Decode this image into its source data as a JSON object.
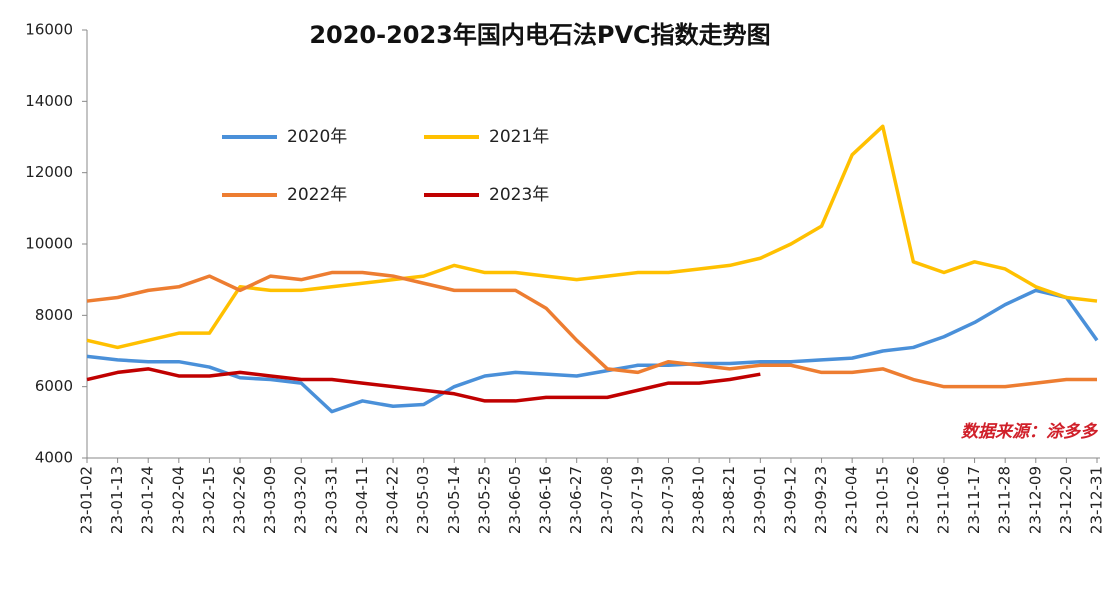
{
  "chart_data": {
    "type": "line",
    "title": "2020-2023年国内电石法PVC指数走势图",
    "note": "数据来源：涂多多",
    "categories": [
      "23-01-02",
      "23-01-13",
      "23-01-24",
      "23-02-04",
      "23-02-15",
      "23-02-26",
      "23-03-09",
      "23-03-20",
      "23-03-31",
      "23-04-11",
      "23-04-22",
      "23-05-03",
      "23-05-14",
      "23-05-25",
      "23-06-05",
      "23-06-16",
      "23-06-27",
      "23-07-08",
      "23-07-19",
      "23-07-30",
      "23-08-10",
      "23-08-21",
      "23-09-01",
      "23-09-12",
      "23-09-23",
      "23-10-04",
      "23-10-15",
      "23-10-26",
      "23-11-06",
      "23-11-17",
      "23-11-28",
      "23-12-09",
      "23-12-20",
      "23-12-31"
    ],
    "series": [
      {
        "name": "2020年",
        "color": "#4a90d9",
        "values": [
          6850,
          6750,
          6700,
          6700,
          6550,
          6250,
          6200,
          6100,
          5300,
          5600,
          5450,
          5500,
          6000,
          6300,
          6400,
          6350,
          6300,
          6450,
          6600,
          6600,
          6650,
          6650,
          6700,
          6700,
          6750,
          6800,
          7000,
          7100,
          7400,
          7800,
          8300,
          8700,
          8500,
          7300
        ]
      },
      {
        "name": "2021年",
        "color": "#ffc000",
        "values": [
          7300,
          7100,
          7300,
          7500,
          7500,
          8800,
          8700,
          8700,
          8800,
          8900,
          9000,
          9100,
          9400,
          9200,
          9200,
          9100,
          9000,
          9100,
          9200,
          9200,
          9300,
          9400,
          9600,
          10000,
          10500,
          12500,
          13300,
          9500,
          9200,
          9500,
          9300,
          8800,
          8500,
          8400
        ]
      },
      {
        "name": "2022年",
        "color": "#ed7d31",
        "values": [
          8400,
          8500,
          8700,
          8800,
          9100,
          8700,
          9100,
          9000,
          9200,
          9200,
          9100,
          8900,
          8700,
          8700,
          8700,
          8200,
          7300,
          6500,
          6400,
          6700,
          6600,
          6500,
          6600,
          6600,
          6400,
          6400,
          6500,
          6200,
          6000,
          6000,
          6000,
          6100,
          6200,
          6200
        ]
      },
      {
        "name": "2023年",
        "color": "#c00000",
        "values": [
          6200,
          6400,
          6500,
          6300,
          6300,
          6400,
          6300,
          6200,
          6200,
          6100,
          6000,
          5900,
          5800,
          5600,
          5600,
          5700,
          5700,
          5700,
          5900,
          6100,
          6100,
          6200,
          6350,
          null,
          null,
          null,
          null,
          null,
          null,
          null,
          null,
          null,
          null,
          null
        ]
      }
    ],
    "ylim": [
      4000,
      16000
    ],
    "yticks": [
      4000,
      6000,
      8000,
      10000,
      12000,
      14000,
      16000
    ]
  }
}
